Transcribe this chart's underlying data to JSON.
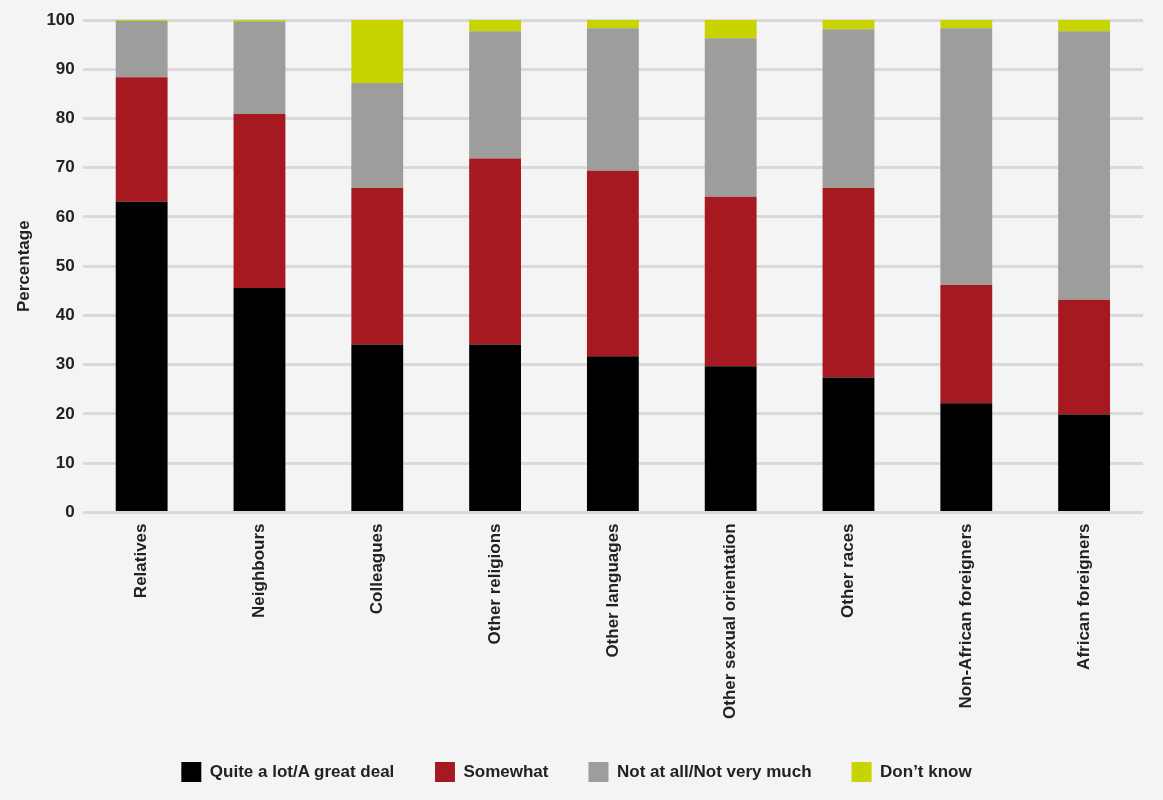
{
  "chart_data": {
    "type": "bar",
    "stacked": true,
    "ylabel": "Percentage",
    "categories": [
      "Relatives",
      "Neighbours",
      "Colleagues",
      "Other religions",
      "Other languages",
      "Other sexual orientation",
      "Other races",
      "Non-African foreigners",
      "African foreigners"
    ],
    "series": [
      {
        "name": "Quite a lot/A great deal",
        "color": "#000000",
        "values": [
          63.1,
          45.6,
          34.1,
          34.1,
          31.7,
          29.7,
          27.4,
          22.2,
          19.9
        ]
      },
      {
        "name": "Somewhat",
        "color": "#a71920",
        "values": [
          25.3,
          35.3,
          31.8,
          37.8,
          37.7,
          34.4,
          38.5,
          24.0,
          23.3
        ]
      },
      {
        "name": "Not at all/Not very much",
        "color": "#9d9d9b",
        "values": [
          11.4,
          18.8,
          21.3,
          25.8,
          28.9,
          32.2,
          32.2,
          52.1,
          54.5
        ]
      },
      {
        "name": "Don’t know",
        "color": "#c8d400",
        "values": [
          0.4,
          0.5,
          13.0,
          2.5,
          1.9,
          3.9,
          2.1,
          1.9,
          2.5
        ]
      }
    ],
    "ylim": [
      0,
      100
    ],
    "yticks": [
      0,
      10,
      20,
      30,
      40,
      50,
      60,
      70,
      80,
      90,
      100
    ],
    "grid": "y",
    "legend": "bottom"
  }
}
